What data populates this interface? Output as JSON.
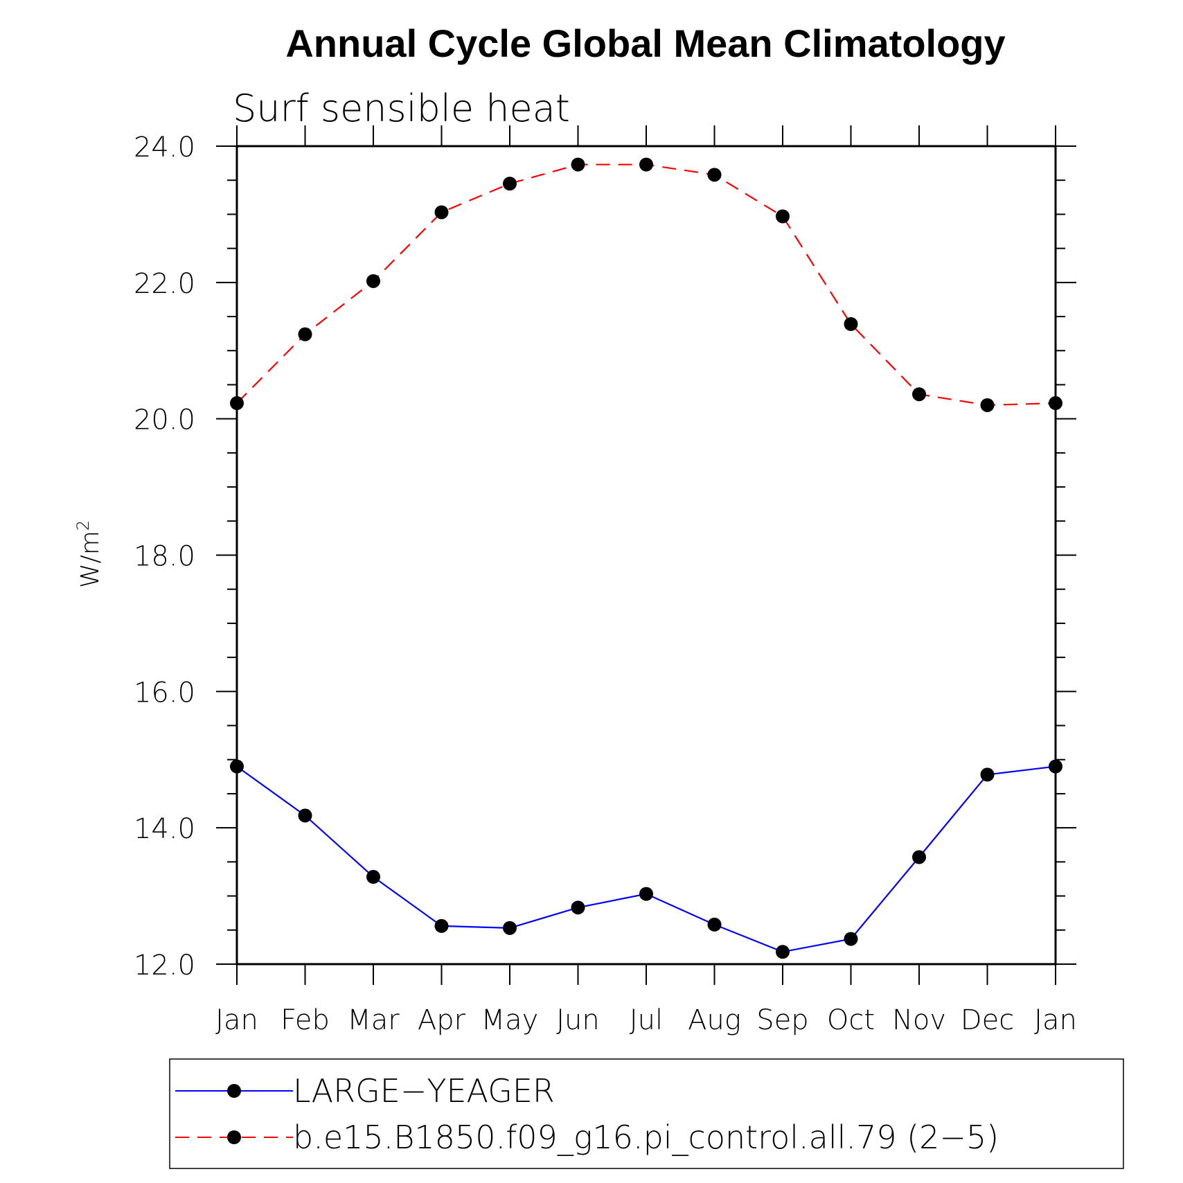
{
  "chart_data": {
    "type": "line",
    "title": "Annual Cycle Global Mean Climatology",
    "subtitle": "Surf sensible heat",
    "ylabel_base": "W/m",
    "ylabel_sup": "2",
    "ylim": [
      12.0,
      24.0
    ],
    "yticks": [
      "12.0",
      "14.0",
      "16.0",
      "18.0",
      "20.0",
      "22.0",
      "24.0"
    ],
    "ytick_values": [
      12,
      14,
      16,
      18,
      20,
      22,
      24
    ],
    "categories": [
      "Jan",
      "Feb",
      "Mar",
      "Apr",
      "May",
      "Jun",
      "Jul",
      "Aug",
      "Sep",
      "Oct",
      "Nov",
      "Dec",
      "Jan"
    ],
    "series": [
      {
        "name": "LARGE−YEAGER",
        "color": "#0000ff",
        "style": "solid",
        "values": [
          14.9,
          14.18,
          13.28,
          12.56,
          12.53,
          12.83,
          13.03,
          12.58,
          12.18,
          12.37,
          13.57,
          14.78,
          14.9
        ]
      },
      {
        "name": "b.e15.B1850.f09_g16.pi_control.all.79 (2−5)",
        "color": "#ff0000",
        "style": "dashed",
        "values": [
          20.23,
          21.24,
          22.02,
          23.03,
          23.45,
          23.73,
          23.73,
          23.58,
          22.97,
          21.39,
          20.36,
          20.2,
          20.23
        ]
      }
    ],
    "grid": false,
    "legend_position": "bottom"
  }
}
